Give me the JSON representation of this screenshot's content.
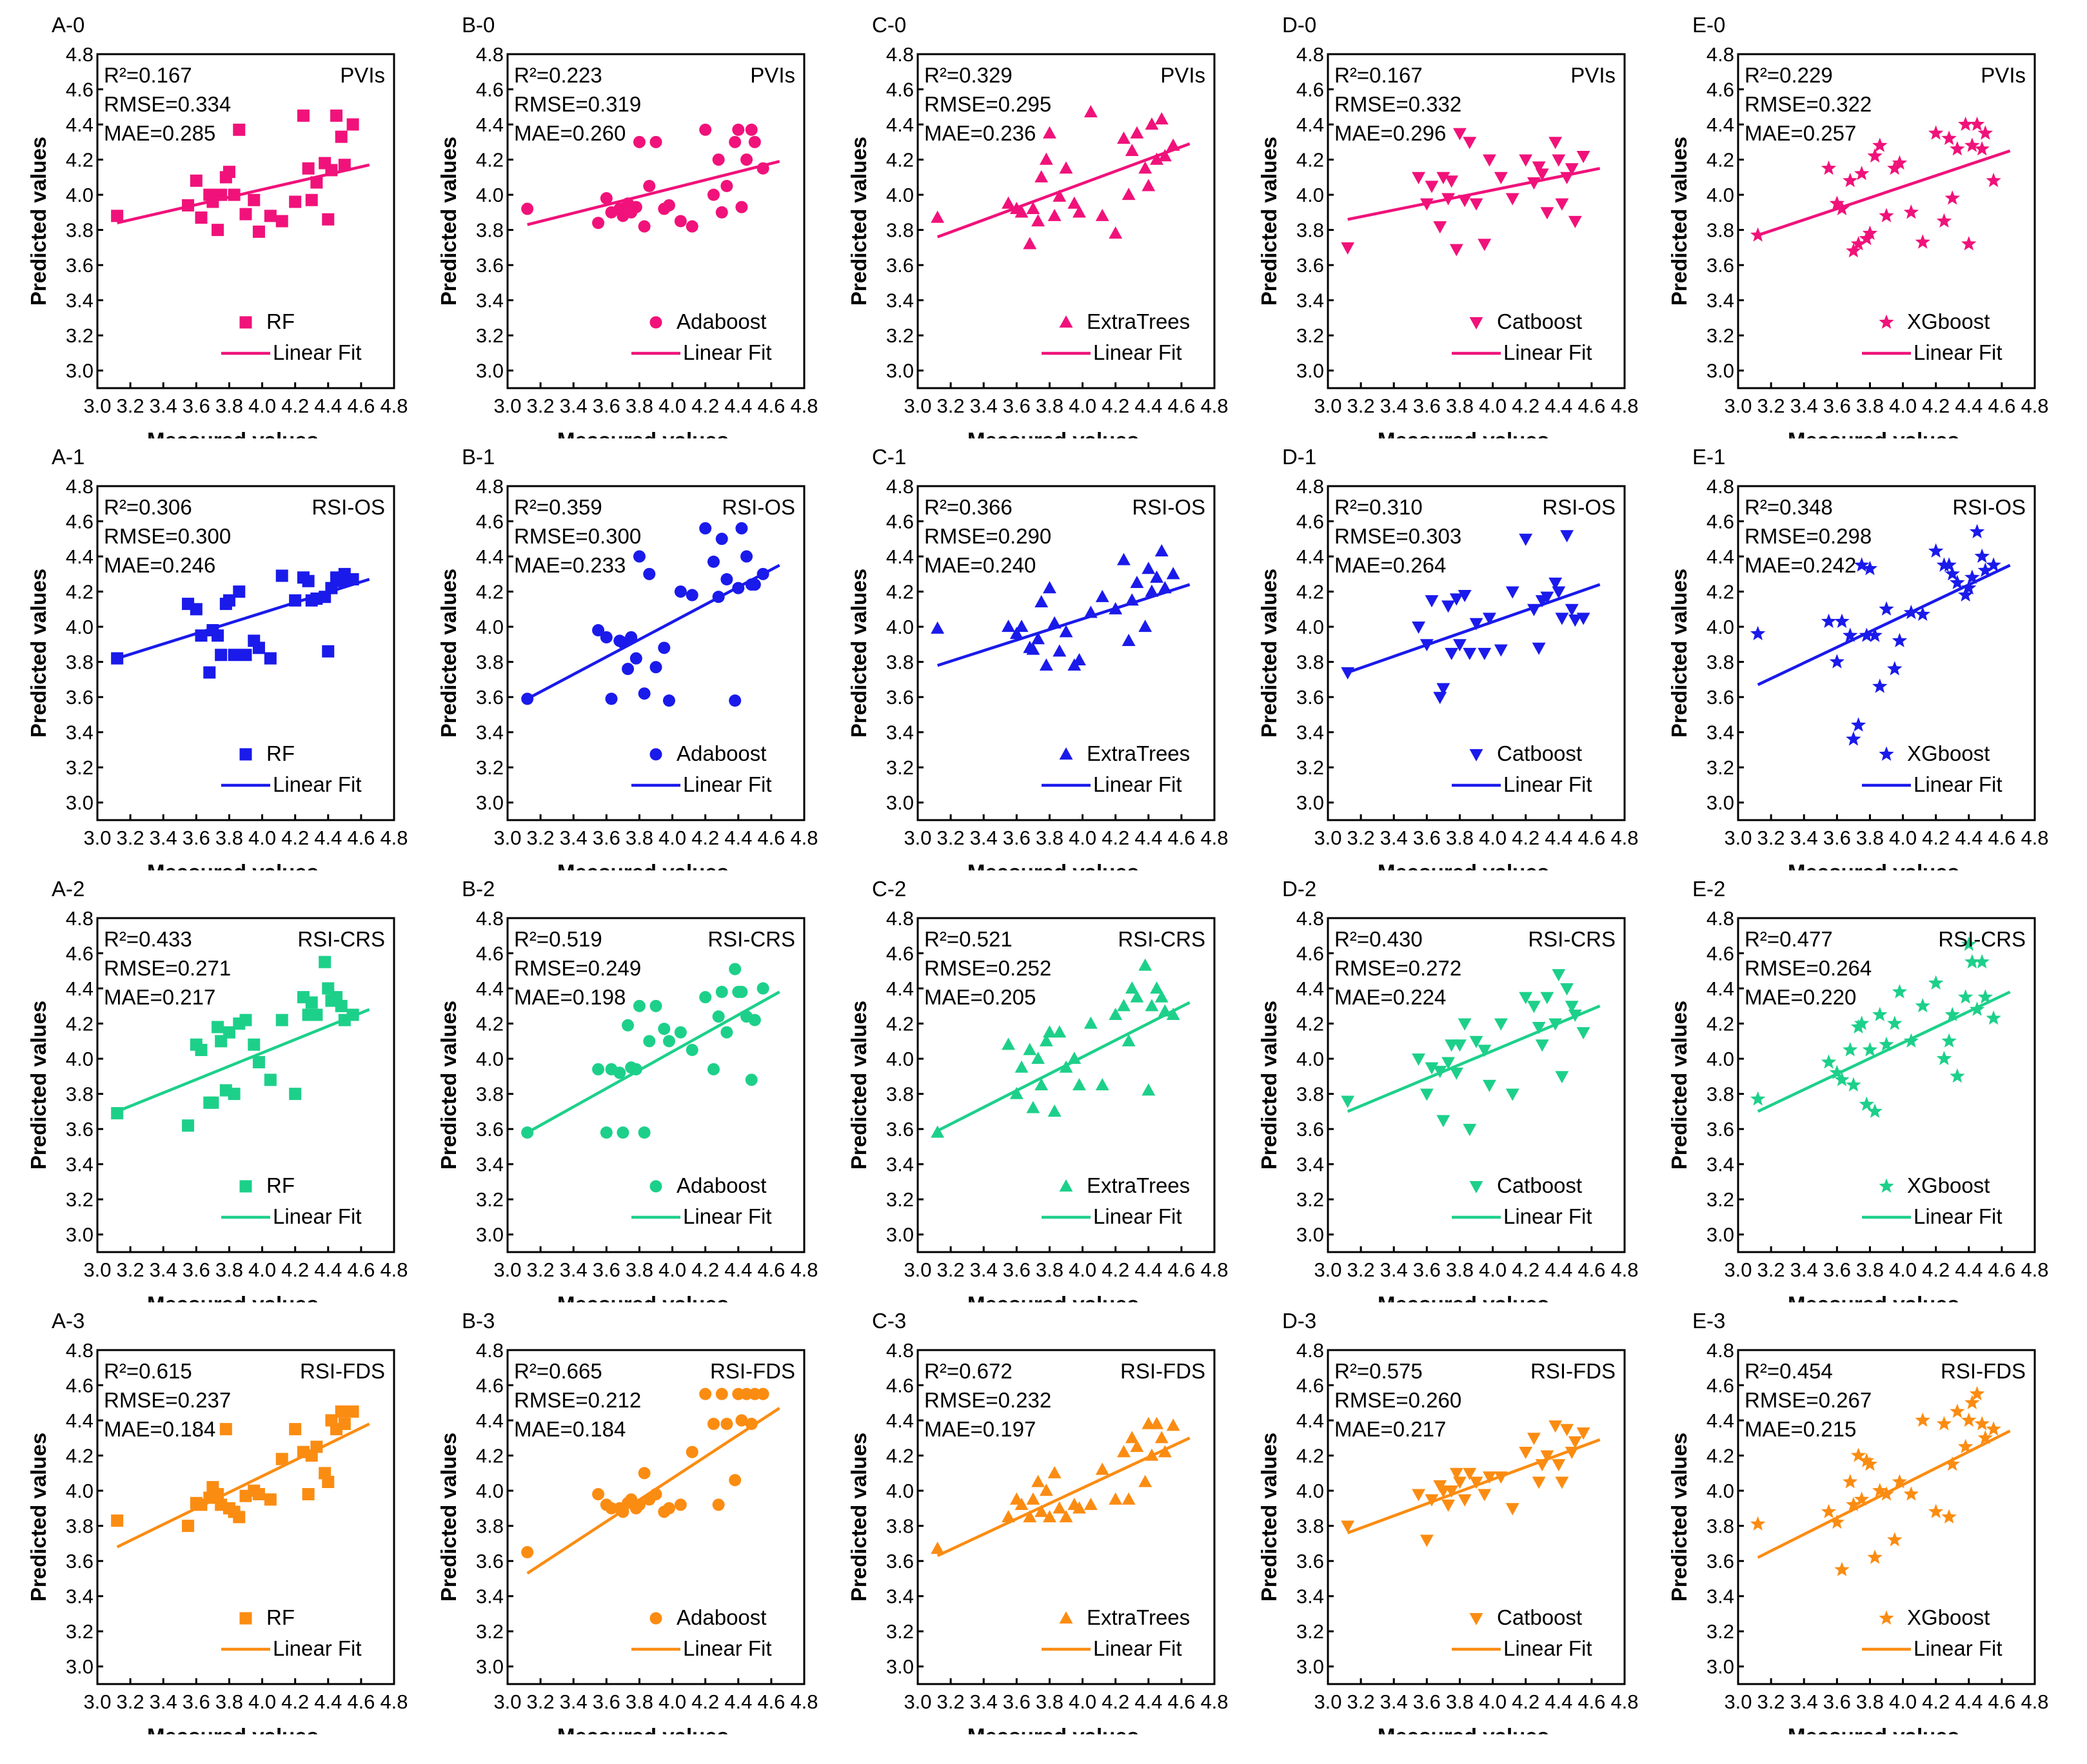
{
  "common": {
    "xlabel": "Measured values",
    "ylabel": "Predicted values",
    "xlim": [
      3.0,
      4.8
    ],
    "ylim": [
      2.9,
      4.8
    ],
    "xticks": [
      "3.0",
      "3.2",
      "3.4",
      "3.6",
      "3.8",
      "4.0",
      "4.2",
      "4.4",
      "4.6",
      "4.8"
    ],
    "yticks": [
      "3.0",
      "3.2",
      "3.4",
      "3.6",
      "3.8",
      "4.0",
      "4.2",
      "4.4",
      "4.6",
      "4.8"
    ],
    "fit_label": "Linear Fit"
  },
  "rows": [
    {
      "index": "0",
      "method": "PVIs",
      "color": "#f0127a"
    },
    {
      "index": "1",
      "method": "RSI-OS",
      "color": "#1a1aeb"
    },
    {
      "index": "2",
      "method": "RSI-CRS",
      "color": "#1dd08a"
    },
    {
      "index": "3",
      "method": "RSI-FDS",
      "color": "#fb8c12"
    }
  ],
  "columns": [
    {
      "letter": "A",
      "model": "RF",
      "marker": "square"
    },
    {
      "letter": "B",
      "model": "Adaboost",
      "marker": "circle"
    },
    {
      "letter": "C",
      "model": "ExtraTrees",
      "marker": "triangle-up"
    },
    {
      "letter": "D",
      "model": "Catboost",
      "marker": "triangle-down"
    },
    {
      "letter": "E",
      "model": "XGboost",
      "marker": "star"
    }
  ],
  "measured_x": [
    3.12,
    3.55,
    3.6,
    3.63,
    3.68,
    3.7,
    3.73,
    3.75,
    3.78,
    3.8,
    3.83,
    3.86,
    3.9,
    3.95,
    3.98,
    4.05,
    4.12,
    4.2,
    4.25,
    4.28,
    4.3,
    4.33,
    4.38,
    4.4,
    4.42,
    4.45,
    4.48,
    4.5,
    4.55
  ],
  "chart_data": [
    {
      "type": "scatter",
      "panel": "A-0",
      "model": "RF",
      "method": "PVIs",
      "metrics": {
        "R2": "R²=0.167",
        "RMSE": "RMSE=0.334",
        "MAE": "MAE=0.285"
      },
      "fit": {
        "x": [
          3.12,
          4.65
        ],
        "y": [
          3.84,
          4.17
        ]
      },
      "y": [
        3.88,
        3.94,
        4.08,
        3.87,
        4.0,
        3.96,
        3.8,
        4.0,
        4.1,
        4.13,
        4.0,
        4.37,
        3.89,
        3.97,
        3.79,
        3.88,
        3.85,
        3.96,
        4.45,
        4.15,
        3.97,
        4.07,
        4.18,
        3.86,
        4.14,
        4.45,
        4.33,
        4.17,
        4.4
      ]
    },
    {
      "type": "scatter",
      "panel": "B-0",
      "model": "Adaboost",
      "method": "PVIs",
      "metrics": {
        "R2": "R²=0.223",
        "RMSE": "RMSE=0.319",
        "MAE": "MAE=0.260"
      },
      "fit": {
        "x": [
          3.12,
          4.65
        ],
        "y": [
          3.83,
          4.19
        ]
      },
      "y": [
        3.92,
        3.84,
        3.98,
        3.9,
        3.92,
        3.88,
        3.95,
        3.9,
        3.93,
        4.3,
        3.82,
        4.05,
        4.3,
        3.92,
        3.94,
        3.85,
        3.82,
        4.37,
        4.0,
        4.2,
        3.9,
        4.05,
        4.3,
        4.37,
        3.93,
        4.2,
        4.37,
        4.3,
        4.15
      ]
    },
    {
      "type": "scatter",
      "panel": "C-0",
      "model": "ExtraTrees",
      "method": "PVIs",
      "metrics": {
        "R2": "R²=0.329",
        "RMSE": "RMSE=0.295",
        "MAE": "MAE=0.236"
      },
      "fit": {
        "x": [
          3.12,
          4.65
        ],
        "y": [
          3.76,
          4.29
        ]
      },
      "y": [
        3.87,
        3.95,
        3.92,
        3.9,
        3.72,
        3.92,
        3.85,
        4.1,
        4.2,
        4.35,
        3.88,
        3.99,
        4.15,
        3.95,
        3.9,
        4.47,
        3.88,
        3.78,
        4.32,
        4.0,
        4.25,
        4.35,
        4.15,
        4.05,
        4.4,
        4.2,
        4.43,
        4.22,
        4.28
      ]
    },
    {
      "type": "scatter",
      "panel": "D-0",
      "model": "Catboost",
      "method": "PVIs",
      "metrics": {
        "R2": "R²=0.167",
        "RMSE": "RMSE=0.332",
        "MAE": "MAE=0.296"
      },
      "fit": {
        "x": [
          3.12,
          4.65
        ],
        "y": [
          3.86,
          4.15
        ]
      },
      "y": [
        3.7,
        4.1,
        3.95,
        4.05,
        3.82,
        4.1,
        3.98,
        4.08,
        3.69,
        4.35,
        3.97,
        4.3,
        3.95,
        3.72,
        4.2,
        4.1,
        3.98,
        4.2,
        4.07,
        4.16,
        4.12,
        3.9,
        4.3,
        4.2,
        3.95,
        4.1,
        4.15,
        3.85,
        4.22
      ]
    },
    {
      "type": "scatter",
      "panel": "E-0",
      "model": "XGboost",
      "method": "PVIs",
      "metrics": {
        "R2": "R²=0.229",
        "RMSE": "RMSE=0.322",
        "MAE": "MAE=0.257"
      },
      "fit": {
        "x": [
          3.12,
          4.65
        ],
        "y": [
          3.77,
          4.25
        ]
      },
      "y": [
        3.77,
        4.15,
        3.95,
        3.92,
        4.08,
        3.68,
        3.72,
        4.12,
        3.75,
        3.78,
        4.22,
        4.28,
        3.88,
        4.15,
        4.18,
        3.9,
        3.73,
        4.35,
        3.85,
        4.32,
        3.98,
        4.26,
        4.4,
        3.72,
        4.28,
        4.4,
        4.26,
        4.35,
        4.08
      ]
    },
    {
      "type": "scatter",
      "panel": "A-1",
      "model": "RF",
      "method": "RSI-OS",
      "metrics": {
        "R2": "R²=0.306",
        "RMSE": "RMSE=0.300",
        "MAE": "MAE=0.246"
      },
      "fit": {
        "x": [
          3.12,
          4.65
        ],
        "y": [
          3.82,
          4.27
        ]
      },
      "y": [
        3.82,
        4.13,
        4.1,
        3.95,
        3.74,
        3.98,
        3.95,
        3.84,
        4.13,
        4.15,
        3.84,
        4.2,
        3.84,
        3.92,
        3.88,
        3.82,
        4.29,
        4.15,
        4.28,
        4.26,
        4.15,
        4.16,
        4.17,
        3.86,
        4.22,
        4.28,
        4.26,
        4.3,
        4.27
      ]
    },
    {
      "type": "scatter",
      "panel": "B-1",
      "model": "Adaboost",
      "method": "RSI-OS",
      "metrics": {
        "R2": "R²=0.359",
        "RMSE": "RMSE=0.300",
        "MAE": "MAE=0.233"
      },
      "fit": {
        "x": [
          3.12,
          4.65
        ],
        "y": [
          3.59,
          4.35
        ]
      },
      "y": [
        3.59,
        3.98,
        3.94,
        3.59,
        3.92,
        3.91,
        3.76,
        3.94,
        3.82,
        4.4,
        3.62,
        4.3,
        3.77,
        3.88,
        3.58,
        4.2,
        4.18,
        4.56,
        4.37,
        4.17,
        4.5,
        4.27,
        3.58,
        4.22,
        4.56,
        4.4,
        4.24,
        4.24,
        4.3
      ]
    },
    {
      "type": "scatter",
      "panel": "C-1",
      "model": "ExtraTrees",
      "method": "RSI-OS",
      "metrics": {
        "R2": "R²=0.366",
        "RMSE": "RMSE=0.290",
        "MAE": "MAE=0.240"
      },
      "fit": {
        "x": [
          3.12,
          4.65
        ],
        "y": [
          3.78,
          4.24
        ]
      },
      "y": [
        3.99,
        4.0,
        3.96,
        4.0,
        3.88,
        3.87,
        3.93,
        4.14,
        3.78,
        4.22,
        4.02,
        3.86,
        3.97,
        3.78,
        3.81,
        4.08,
        4.17,
        4.1,
        4.38,
        3.92,
        4.15,
        4.25,
        4.0,
        4.33,
        4.2,
        4.28,
        4.43,
        4.22,
        4.3
      ]
    },
    {
      "type": "scatter",
      "panel": "D-1",
      "model": "Catboost",
      "method": "RSI-OS",
      "metrics": {
        "R2": "R²=0.310",
        "RMSE": "RMSE=0.303",
        "MAE": "MAE=0.264"
      },
      "fit": {
        "x": [
          3.12,
          4.65
        ],
        "y": [
          3.74,
          4.24
        ]
      },
      "y": [
        3.74,
        4.0,
        3.9,
        4.15,
        3.6,
        3.65,
        4.12,
        3.85,
        4.16,
        3.9,
        4.18,
        3.85,
        4.02,
        3.85,
        4.05,
        3.87,
        4.2,
        4.5,
        4.1,
        3.88,
        4.15,
        4.17,
        4.25,
        4.2,
        4.05,
        4.52,
        4.1,
        4.04,
        4.05
      ]
    },
    {
      "type": "scatter",
      "panel": "E-1",
      "model": "XGboost",
      "method": "RSI-OS",
      "metrics": {
        "R2": "R²=0.348",
        "RMSE": "RMSE=0.298",
        "MAE": "MAE=0.242"
      },
      "fit": {
        "x": [
          3.12,
          4.65
        ],
        "y": [
          3.67,
          4.35
        ]
      },
      "y": [
        3.96,
        4.03,
        3.8,
        4.03,
        3.95,
        3.36,
        3.44,
        4.35,
        3.95,
        4.33,
        3.95,
        3.66,
        4.1,
        3.76,
        3.92,
        4.08,
        4.07,
        4.43,
        4.35,
        4.35,
        4.3,
        4.25,
        4.18,
        4.22,
        4.28,
        4.54,
        4.4,
        4.32,
        4.35
      ]
    },
    {
      "type": "scatter",
      "panel": "A-2",
      "model": "RF",
      "method": "RSI-CRS",
      "metrics": {
        "R2": "R²=0.433",
        "RMSE": "RMSE=0.271",
        "MAE": "MAE=0.217"
      },
      "fit": {
        "x": [
          3.12,
          4.65
        ],
        "y": [
          3.7,
          4.28
        ]
      },
      "y": [
        3.69,
        3.62,
        4.08,
        4.05,
        3.75,
        3.75,
        4.18,
        4.1,
        3.82,
        4.15,
        3.8,
        4.2,
        4.22,
        4.08,
        3.98,
        3.88,
        4.22,
        3.8,
        4.35,
        4.25,
        4.32,
        4.25,
        4.55,
        4.4,
        4.33,
        4.35,
        4.3,
        4.22,
        4.25
      ]
    },
    {
      "type": "scatter",
      "panel": "B-2",
      "model": "Adaboost",
      "method": "RSI-CRS",
      "metrics": {
        "R2": "R²=0.519",
        "RMSE": "RMSE=0.249",
        "MAE": "MAE=0.198"
      },
      "fit": {
        "x": [
          3.12,
          4.65
        ],
        "y": [
          3.58,
          4.38
        ]
      },
      "y": [
        3.58,
        3.94,
        3.58,
        3.94,
        3.92,
        3.58,
        4.19,
        3.95,
        3.94,
        4.3,
        3.58,
        4.1,
        4.3,
        4.17,
        4.1,
        4.15,
        4.05,
        4.35,
        3.94,
        4.24,
        4.38,
        4.15,
        4.51,
        4.38,
        4.38,
        4.24,
        3.88,
        4.22,
        4.4
      ]
    },
    {
      "type": "scatter",
      "panel": "C-2",
      "model": "ExtraTrees",
      "method": "RSI-CRS",
      "metrics": {
        "R2": "R²=0.521",
        "RMSE": "RMSE=0.252",
        "MAE": "MAE=0.205"
      },
      "fit": {
        "x": [
          3.12,
          4.65
        ],
        "y": [
          3.59,
          4.32
        ]
      },
      "y": [
        3.58,
        4.08,
        3.8,
        3.95,
        4.05,
        3.72,
        4.0,
        3.85,
        4.1,
        4.15,
        3.7,
        4.15,
        3.95,
        4.0,
        3.85,
        4.2,
        3.85,
        4.25,
        4.3,
        4.1,
        4.4,
        4.35,
        4.53,
        3.82,
        4.3,
        4.4,
        4.35,
        4.27,
        4.25
      ]
    },
    {
      "type": "scatter",
      "panel": "D-2",
      "model": "Catboost",
      "method": "RSI-CRS",
      "metrics": {
        "R2": "R²=0.430",
        "RMSE": "RMSE=0.272",
        "MAE": "MAE=0.224"
      },
      "fit": {
        "x": [
          3.12,
          4.65
        ],
        "y": [
          3.7,
          4.3
        ]
      },
      "y": [
        3.76,
        4.0,
        3.8,
        3.95,
        3.93,
        3.65,
        3.98,
        4.08,
        3.92,
        4.08,
        4.2,
        3.6,
        4.1,
        4.05,
        3.85,
        4.2,
        3.8,
        4.35,
        4.3,
        4.18,
        4.08,
        4.35,
        4.2,
        4.48,
        3.9,
        4.4,
        4.3,
        4.25,
        4.15
      ]
    },
    {
      "type": "scatter",
      "panel": "E-2",
      "model": "XGboost",
      "method": "RSI-CRS",
      "metrics": {
        "R2": "R²=0.477",
        "RMSE": "RMSE=0.264",
        "MAE": "MAE=0.220"
      },
      "fit": {
        "x": [
          3.12,
          4.65
        ],
        "y": [
          3.7,
          4.38
        ]
      },
      "y": [
        3.77,
        3.98,
        3.92,
        3.88,
        4.05,
        3.85,
        4.18,
        4.2,
        3.74,
        4.05,
        3.7,
        4.25,
        4.08,
        4.2,
        4.38,
        4.1,
        4.3,
        4.43,
        4.0,
        4.1,
        4.25,
        3.9,
        4.35,
        4.65,
        4.55,
        4.28,
        4.55,
        4.35,
        4.23
      ]
    },
    {
      "type": "scatter",
      "panel": "A-3",
      "model": "RF",
      "method": "RSI-FDS",
      "metrics": {
        "R2": "R²=0.615",
        "RMSE": "RMSE=0.237",
        "MAE": "MAE=0.184"
      },
      "fit": {
        "x": [
          3.12,
          4.65
        ],
        "y": [
          3.68,
          4.38
        ]
      },
      "y": [
        3.83,
        3.8,
        3.93,
        3.92,
        3.96,
        4.02,
        3.98,
        3.92,
        4.35,
        3.9,
        3.88,
        3.85,
        3.97,
        4.0,
        3.98,
        3.95,
        4.18,
        4.35,
        4.22,
        3.98,
        4.2,
        4.25,
        4.1,
        4.05,
        4.4,
        4.35,
        4.45,
        4.38,
        4.45
      ]
    },
    {
      "type": "scatter",
      "panel": "B-3",
      "model": "Adaboost",
      "method": "RSI-FDS",
      "metrics": {
        "R2": "R²=0.665",
        "RMSE": "RMSE=0.212",
        "MAE": "MAE=0.184"
      },
      "fit": {
        "x": [
          3.12,
          4.65
        ],
        "y": [
          3.53,
          4.47
        ]
      },
      "y": [
        3.65,
        3.98,
        3.92,
        3.9,
        3.9,
        3.88,
        3.93,
        3.95,
        3.9,
        3.92,
        4.1,
        3.95,
        3.98,
        3.88,
        3.9,
        3.92,
        4.22,
        4.55,
        4.38,
        3.92,
        4.55,
        4.38,
        4.06,
        4.55,
        4.4,
        4.55,
        4.38,
        4.55,
        4.55
      ]
    },
    {
      "type": "scatter",
      "panel": "C-3",
      "model": "ExtraTrees",
      "method": "RSI-FDS",
      "metrics": {
        "R2": "R²=0.672",
        "RMSE": "RMSE=0.232",
        "MAE": "MAE=0.197"
      },
      "fit": {
        "x": [
          3.12,
          4.65
        ],
        "y": [
          3.63,
          4.3
        ]
      },
      "y": [
        3.67,
        3.85,
        3.95,
        3.92,
        3.85,
        3.95,
        4.05,
        3.88,
        4.0,
        3.85,
        4.1,
        3.9,
        3.85,
        3.92,
        3.9,
        3.92,
        4.12,
        3.95,
        4.22,
        3.95,
        4.3,
        4.25,
        4.05,
        4.38,
        4.2,
        4.38,
        4.3,
        4.22,
        4.37
      ]
    },
    {
      "type": "scatter",
      "panel": "D-3",
      "model": "Catboost",
      "method": "RSI-FDS",
      "metrics": {
        "R2": "R²=0.575",
        "RMSE": "RMSE=0.260",
        "MAE": "MAE=0.217"
      },
      "fit": {
        "x": [
          3.12,
          4.65
        ],
        "y": [
          3.76,
          4.29
        ]
      },
      "y": [
        3.8,
        3.98,
        3.72,
        3.95,
        4.03,
        4.0,
        3.92,
        4.0,
        4.1,
        4.05,
        3.95,
        4.1,
        4.05,
        3.98,
        4.08,
        4.08,
        3.9,
        4.22,
        4.3,
        4.05,
        4.15,
        4.2,
        4.37,
        4.15,
        4.05,
        4.35,
        4.22,
        4.28,
        4.33
      ]
    },
    {
      "type": "scatter",
      "panel": "E-3",
      "model": "XGboost",
      "method": "RSI-FDS",
      "metrics": {
        "R2": "R²=0.454",
        "RMSE": "RMSE=0.267",
        "MAE": "MAE=0.215"
      },
      "fit": {
        "x": [
          3.12,
          4.65
        ],
        "y": [
          3.62,
          4.34
        ]
      },
      "y": [
        3.81,
        3.88,
        3.82,
        3.55,
        4.05,
        3.92,
        4.2,
        3.95,
        4.17,
        4.15,
        3.62,
        4.0,
        3.98,
        3.72,
        4.05,
        3.98,
        4.4,
        3.88,
        4.38,
        3.85,
        4.15,
        4.45,
        4.25,
        4.4,
        4.5,
        4.55,
        4.38,
        4.3,
        4.35
      ]
    }
  ]
}
